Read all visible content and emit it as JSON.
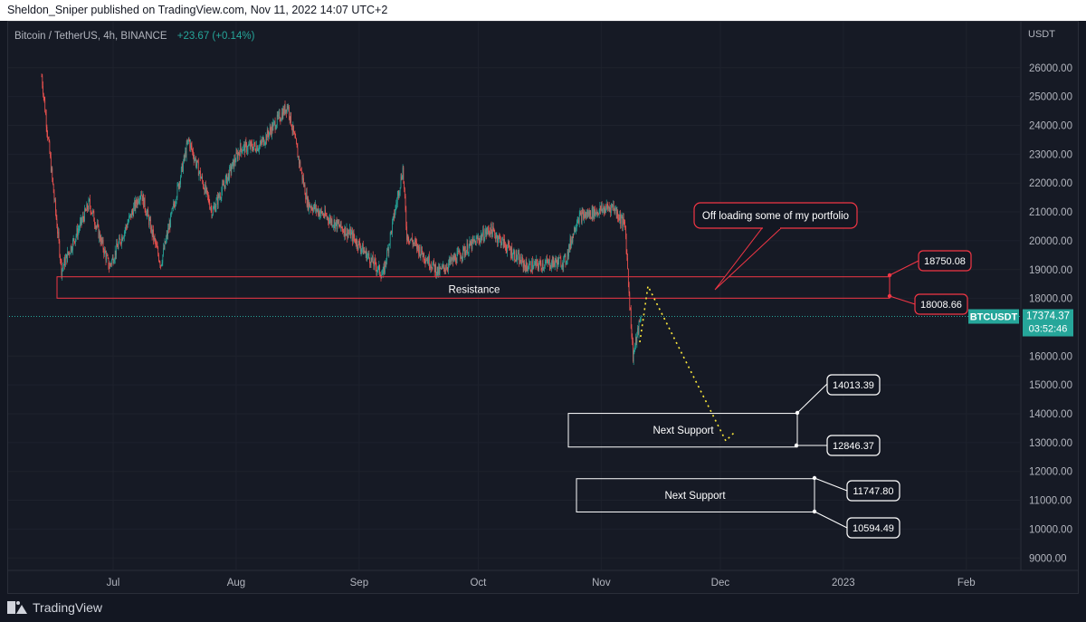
{
  "publish_line": "Sheldon_Sniper published on TradingView.com, Nov 11, 2022 14:07 UTC+2",
  "symbol": {
    "name": "Bitcoin / TetherUS, 4h, BINANCE",
    "change": "+23.67 (+0.14%)"
  },
  "axis": {
    "currency": "USDT",
    "price_labels": [
      "26000.00",
      "25000.00",
      "24000.00",
      "23000.00",
      "22000.00",
      "21000.00",
      "20000.00",
      "19000.00",
      "18000.00",
      "16000.00",
      "15000.00",
      "14000.00",
      "13000.00",
      "12000.00",
      "11000.00",
      "10000.00",
      "9000.00"
    ],
    "time_labels": [
      "Jul",
      "Aug",
      "Sep",
      "Oct",
      "Nov",
      "Dec",
      "2023",
      "Feb"
    ]
  },
  "last_price": {
    "ticker": "BTCUSDT",
    "price": "17374.37",
    "countdown": "03:52:46"
  },
  "annotations": {
    "resistance": {
      "label": "Resistance",
      "upper": "18750.08",
      "lower": "18008.66"
    },
    "callout": "Off loading some of my portfolio",
    "support1": {
      "label": "Next Support",
      "upper": "14013.39",
      "lower": "12846.37"
    },
    "support2": {
      "label": "Next Support",
      "upper": "11747.80",
      "lower": "10594.49"
    }
  },
  "footer": {
    "brand": "TradingView"
  },
  "colors": {
    "up": "#26a69a",
    "down": "#ef5350",
    "resistance": "#f23645",
    "support": "#ffffff",
    "projection": "#ffeb3b"
  },
  "chart_data": {
    "type": "candlestick",
    "symbol": "BTCUSDT",
    "interval": "4h",
    "ylim": [
      8700,
      27000
    ],
    "close_path": [
      {
        "date": "2022-06-13",
        "price": 25700
      },
      {
        "date": "2022-06-18",
        "price": 19000
      },
      {
        "date": "2022-06-25",
        "price": 21300
      },
      {
        "date": "2022-06-30",
        "price": 19100
      },
      {
        "date": "2022-07-08",
        "price": 21700
      },
      {
        "date": "2022-07-13",
        "price": 19200
      },
      {
        "date": "2022-07-20",
        "price": 23500
      },
      {
        "date": "2022-07-26",
        "price": 21000
      },
      {
        "date": "2022-08-02",
        "price": 23200
      },
      {
        "date": "2022-08-07",
        "price": 23300
      },
      {
        "date": "2022-08-14",
        "price": 24700
      },
      {
        "date": "2022-08-19",
        "price": 21300
      },
      {
        "date": "2022-08-30",
        "price": 20200
      },
      {
        "date": "2022-09-07",
        "price": 18800
      },
      {
        "date": "2022-09-12",
        "price": 22500
      },
      {
        "date": "2022-09-13",
        "price": 20200
      },
      {
        "date": "2022-09-21",
        "price": 18900
      },
      {
        "date": "2022-10-04",
        "price": 20400
      },
      {
        "date": "2022-10-13",
        "price": 19100
      },
      {
        "date": "2022-10-23",
        "price": 19300
      },
      {
        "date": "2022-10-26",
        "price": 20800
      },
      {
        "date": "2022-11-04",
        "price": 21200
      },
      {
        "date": "2022-11-07",
        "price": 20500
      },
      {
        "date": "2022-11-09",
        "price": 16000
      },
      {
        "date": "2022-11-11",
        "price": 17374
      }
    ]
  }
}
